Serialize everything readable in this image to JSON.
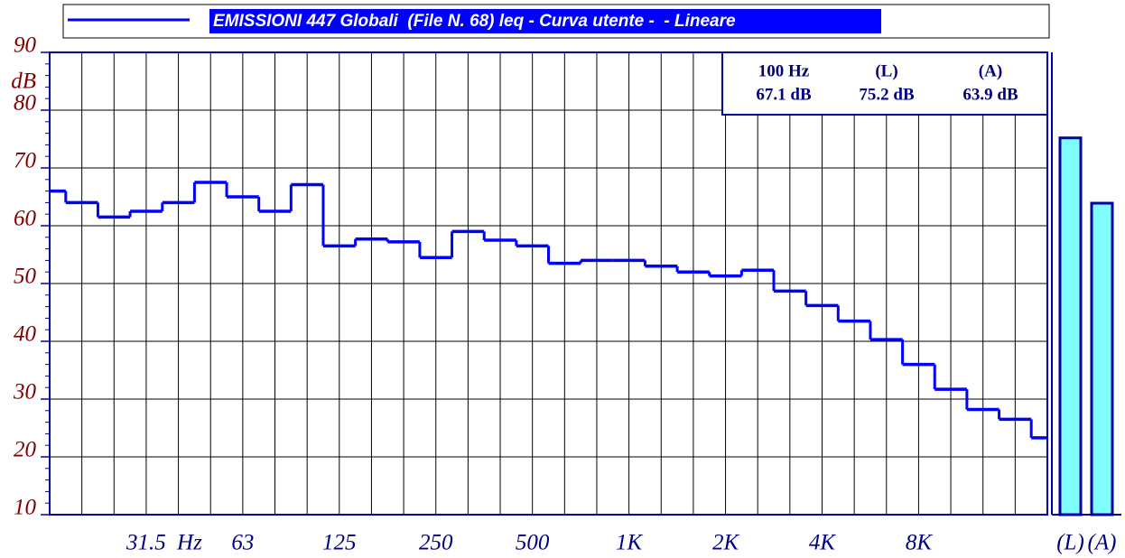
{
  "chart_data": {
    "type": "step",
    "legend": "EMISSIONI 447 Globali  (File N. 68) leq - Curva utente -  - Lineare",
    "y_unit": "dB",
    "x_unit": "Hz",
    "categories": [
      null,
      null,
      null,
      "31.5",
      null,
      null,
      "63",
      null,
      null,
      "125",
      null,
      null,
      "250",
      null,
      null,
      "500",
      null,
      null,
      "1K",
      null,
      null,
      "2K",
      null,
      null,
      "4K",
      null,
      null,
      "8K",
      null,
      null,
      null,
      null
    ],
    "values": [
      66,
      64,
      61.5,
      62.5,
      64,
      67.5,
      65,
      62.5,
      67.1,
      56.5,
      57.7,
      57.2,
      54.5,
      59,
      57.5,
      56.5,
      53.5,
      54,
      54,
      53,
      52,
      51.3,
      52.3,
      48.7,
      46.2,
      43.5,
      40.3,
      36,
      31.7,
      28.2,
      26.5,
      23.3
    ],
    "color": "#0000ff",
    "ylim": [
      10,
      90
    ],
    "yticks": [
      10,
      20,
      30,
      40,
      50,
      60,
      70,
      80,
      90
    ],
    "grid": true,
    "totals": {
      "categories": [
        "(L)",
        "(A)"
      ],
      "values": [
        75.2,
        63.9
      ],
      "color": "#80ffff"
    },
    "readout": {
      "labels": [
        "100 Hz",
        "(L)",
        "(A)"
      ],
      "value_labels": [
        "67.1 dB",
        "75.2 dB",
        "63.9 dB"
      ]
    }
  }
}
